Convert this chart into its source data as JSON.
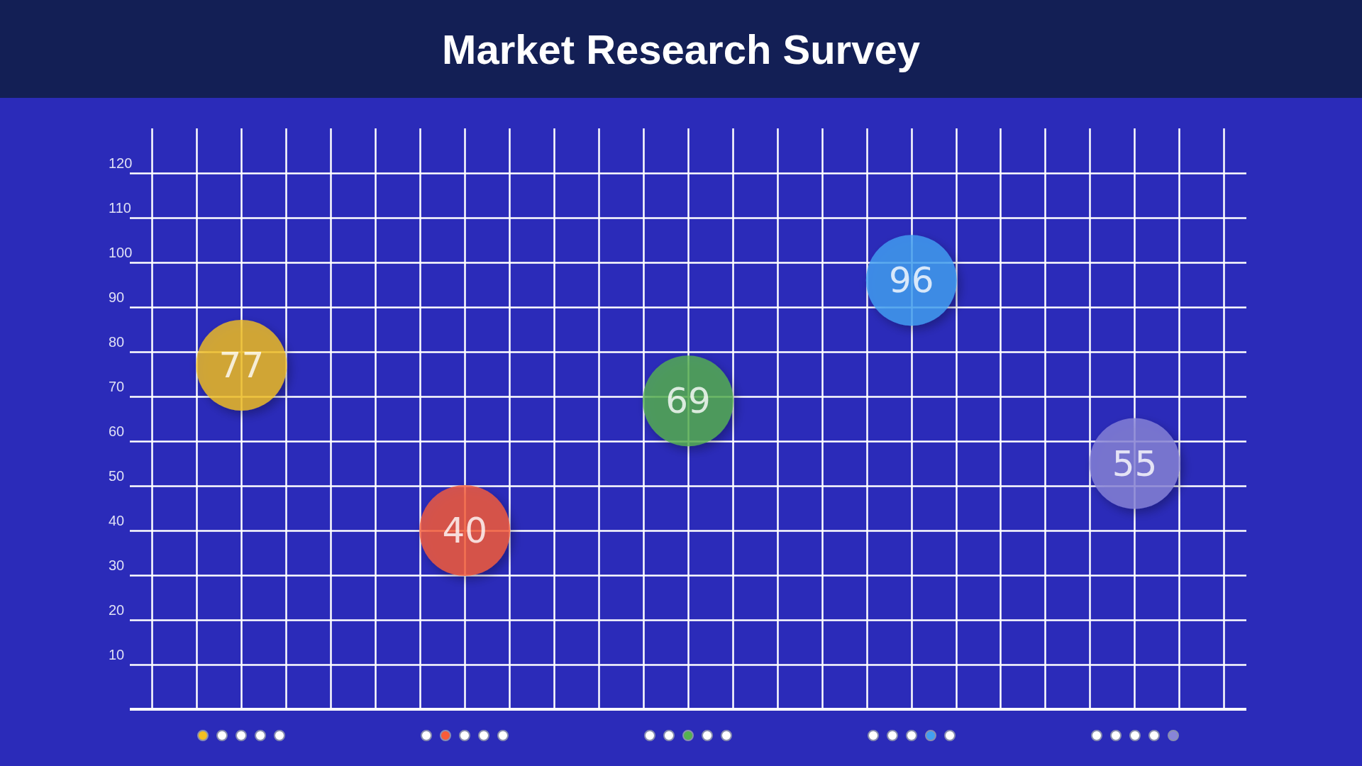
{
  "chart_data": {
    "type": "scatter",
    "title": "Market Research Survey",
    "categories": [
      null,
      null,
      null,
      null,
      null
    ],
    "values": [
      77,
      40,
      69,
      96,
      55
    ],
    "data_labels": true,
    "colors": [
      "#f3bf22",
      "#f95c38",
      "#55b24f",
      "#42a0f2",
      "#8884d8"
    ],
    "ylim": [
      0,
      130
    ],
    "yticks": [
      10,
      20,
      30,
      40,
      50,
      60,
      70,
      80,
      90,
      100,
      110,
      120
    ],
    "grid": true,
    "marker": "circle"
  }
}
